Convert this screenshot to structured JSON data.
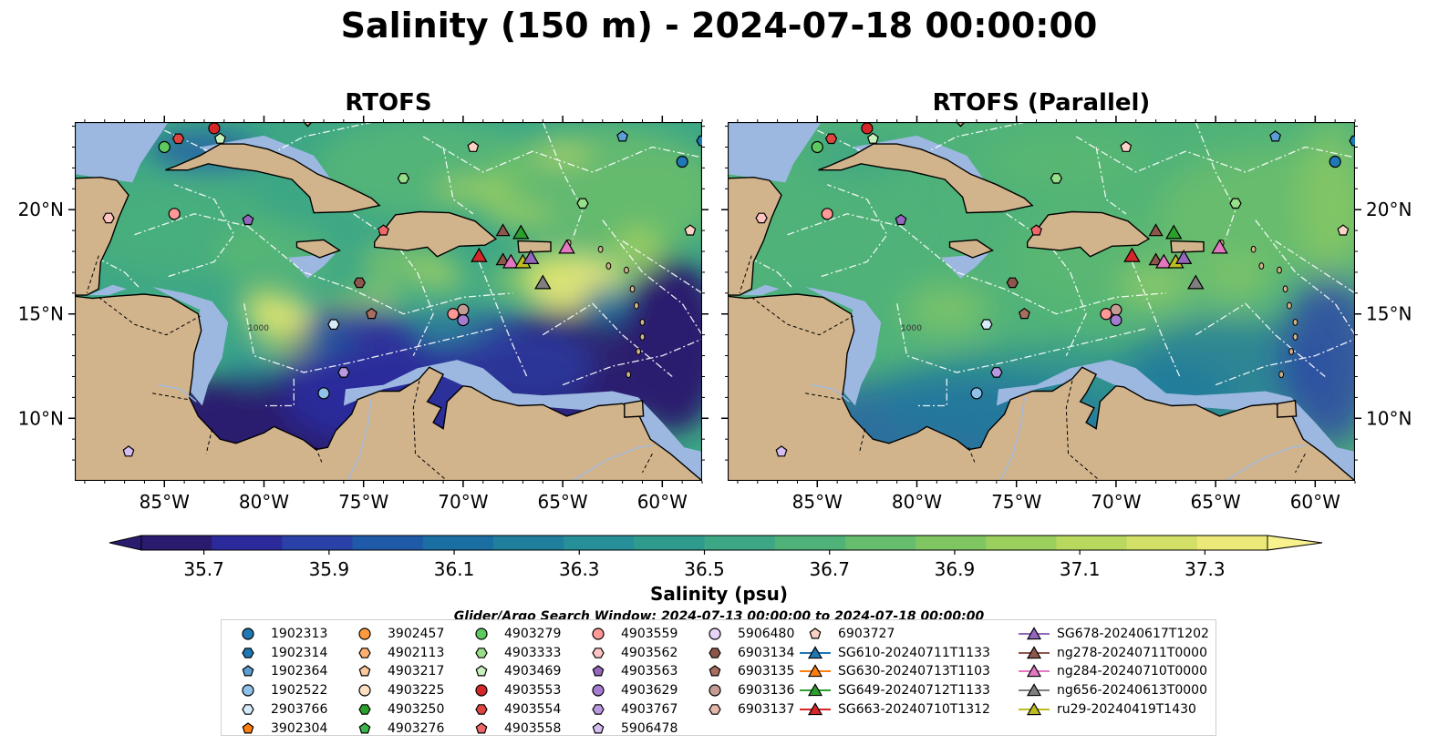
{
  "title": "Salinity (150 m) - 2024-07-18 00:00:00",
  "panels": [
    {
      "title": "RTOFS",
      "mode": "rtofs"
    },
    {
      "title": "RTOFS (Parallel)",
      "mode": "parallel"
    }
  ],
  "map": {
    "lon_range": [
      -89.5,
      -58.0
    ],
    "lat_range": [
      7.0,
      24.2
    ],
    "lon_ticks": [
      {
        "v": -85,
        "label": "85°W"
      },
      {
        "v": -80,
        "label": "80°W"
      },
      {
        "v": -75,
        "label": "75°W"
      },
      {
        "v": -70,
        "label": "70°W"
      },
      {
        "v": -65,
        "label": "65°W"
      },
      {
        "v": -60,
        "label": "60°W"
      }
    ],
    "lat_ticks": [
      {
        "v": 10,
        "label": "10°N"
      },
      {
        "v": 15,
        "label": "15°N"
      },
      {
        "v": 20,
        "label": "20°N"
      }
    ],
    "land_color": "#d2b48c",
    "shelf_color": "#9cb8e0",
    "contour_label": "1000"
  },
  "colorbar": {
    "label": "Salinity (psu)",
    "vmin": 35.6,
    "vmax": 37.4,
    "step": 0.1,
    "ticks": [
      "35.7",
      "35.9",
      "36.1",
      "36.3",
      "36.5",
      "36.7",
      "36.9",
      "37.1",
      "37.3"
    ],
    "colors": [
      "#2a1b6e",
      "#2c2a9b",
      "#2a42a8",
      "#1f5aa8",
      "#1a6ea2",
      "#1f7f9c",
      "#268f97",
      "#2f9b8e",
      "#3da785",
      "#4fb279",
      "#65bd6d",
      "#7fc663",
      "#9bcf5e",
      "#b8d85e",
      "#d2e067",
      "#ece978"
    ]
  },
  "search_window": "Glider/Argo Search Window: 2024-07-13 00:00:00 to 2024-07-18 00:00:00",
  "legend": {
    "columns": [
      [
        {
          "label": "1902313",
          "shape": "circle",
          "color": "#1f77b4"
        },
        {
          "label": "1902314",
          "shape": "hexagon",
          "color": "#1f77b4"
        },
        {
          "label": "1902364",
          "shape": "pentagon",
          "color": "#5a9fd4"
        },
        {
          "label": "1902522",
          "shape": "circle",
          "color": "#8fc1ea"
        },
        {
          "label": "2903766",
          "shape": "hexagon",
          "color": "#d7ecfa"
        },
        {
          "label": "3902304",
          "shape": "pentagon",
          "color": "#ff7f0e"
        }
      ],
      [
        {
          "label": "3902457",
          "shape": "circle",
          "color": "#ff9a3c"
        },
        {
          "label": "4902113",
          "shape": "hexagon",
          "color": "#ffb070"
        },
        {
          "label": "4903217",
          "shape": "pentagon",
          "color": "#ffc89b"
        },
        {
          "label": "4903225",
          "shape": "circle",
          "color": "#ffe0c2"
        },
        {
          "label": "4903250",
          "shape": "hexagon",
          "color": "#2ca02c"
        },
        {
          "label": "4903276",
          "shape": "pentagon",
          "color": "#3cb44b"
        }
      ],
      [
        {
          "label": "4903279",
          "shape": "circle",
          "color": "#5ec95e"
        },
        {
          "label": "4903333",
          "shape": "hexagon",
          "color": "#98df8a"
        },
        {
          "label": "4903469",
          "shape": "pentagon",
          "color": "#c8f0bd"
        },
        {
          "label": "4903553",
          "shape": "circle",
          "color": "#d62728"
        },
        {
          "label": "4903554",
          "shape": "hexagon",
          "color": "#e0463f"
        },
        {
          "label": "4903558",
          "shape": "pentagon",
          "color": "#f0676a"
        }
      ],
      [
        {
          "label": "4903559",
          "shape": "circle",
          "color": "#ff9896"
        },
        {
          "label": "4903562",
          "shape": "hexagon",
          "color": "#ffc4c2"
        },
        {
          "label": "4903563",
          "shape": "pentagon",
          "color": "#9467bd"
        },
        {
          "label": "4903629",
          "shape": "circle",
          "color": "#a47cd0"
        },
        {
          "label": "4903767",
          "shape": "hexagon",
          "color": "#b99ae0"
        },
        {
          "label": "5906478",
          "shape": "pentagon",
          "color": "#d5bdf0"
        }
      ],
      [
        {
          "label": "5906480",
          "shape": "circle",
          "color": "#e7d4f7"
        },
        {
          "label": "6903134",
          "shape": "hexagon",
          "color": "#8c564b"
        },
        {
          "label": "6903135",
          "shape": "pentagon",
          "color": "#a86e60"
        },
        {
          "label": "6903136",
          "shape": "circle",
          "color": "#c49c94"
        },
        {
          "label": "6903137",
          "shape": "hexagon",
          "color": "#e6b7a9"
        }
      ],
      [
        {
          "label": "6903727",
          "shape": "pentagon",
          "color": "#fbd3c4"
        },
        {
          "label": "SG610-20240711T1133",
          "shape": "triangle",
          "color": "#1f77b4"
        },
        {
          "label": "SG630-20240713T1103",
          "shape": "triangle",
          "color": "#ff7f0e"
        },
        {
          "label": "SG649-20240712T1133",
          "shape": "triangle",
          "color": "#2ca02c"
        },
        {
          "label": "SG663-20240710T1312",
          "shape": "triangle",
          "color": "#d62728"
        }
      ],
      [
        {
          "label": "SG678-20240617T1202",
          "shape": "triangle",
          "color": "#9467bd"
        },
        {
          "label": "ng278-20240711T0000",
          "shape": "triangle",
          "color": "#8c564b"
        },
        {
          "label": "ng284-20240710T0000",
          "shape": "triangle",
          "color": "#e377c2"
        },
        {
          "label": "ng656-20240613T0000",
          "shape": "triangle",
          "color": "#7f7f7f"
        },
        {
          "label": "ru29-20240419T1430",
          "shape": "triangle",
          "color": "#bcbd22"
        }
      ]
    ]
  }
}
